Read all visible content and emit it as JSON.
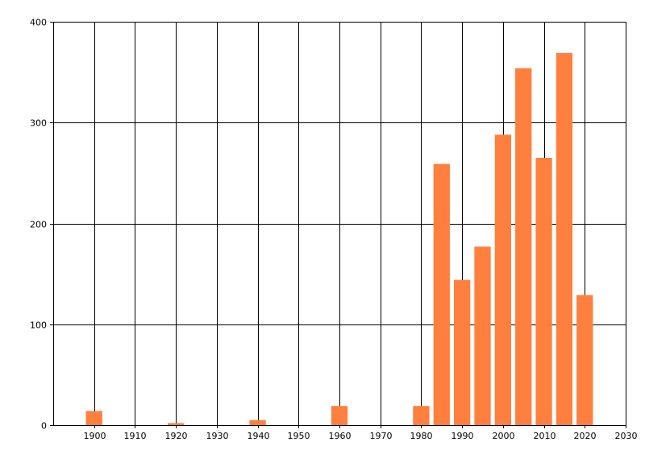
{
  "chart_data": {
    "type": "bar",
    "title": "",
    "xlabel": "",
    "ylabel": "",
    "xlim": [
      1890,
      2030
    ],
    "ylim": [
      0,
      400
    ],
    "x_ticks": [
      1900,
      1910,
      1920,
      1930,
      1940,
      1950,
      1960,
      1970,
      1980,
      1990,
      2000,
      2010,
      2020,
      2030
    ],
    "y_ticks": [
      0,
      100,
      200,
      300,
      400
    ],
    "grid": true,
    "bar_width_years": 4,
    "bar_color": "#ff7f3f",
    "grid_color": "#000000",
    "x": [
      1900,
      1920,
      1940,
      1960,
      1980,
      1985,
      1990,
      1995,
      2000,
      2005,
      2010,
      2015,
      2020
    ],
    "values": [
      14,
      2,
      5,
      19,
      19,
      259,
      144,
      177,
      288,
      354,
      265,
      369,
      129
    ]
  }
}
